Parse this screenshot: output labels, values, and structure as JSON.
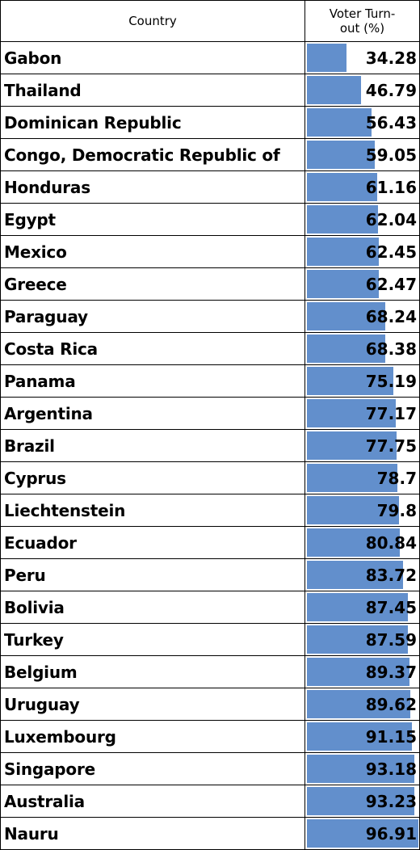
{
  "table": {
    "header": [
      "Country",
      "Voter Turn-out (%)"
    ],
    "rows": [
      [
        "Gabon",
        34.28
      ],
      [
        "Thailand",
        46.79
      ],
      [
        "Dominican Republic",
        56.43
      ],
      [
        "Congo, Democratic Republic of",
        59.05
      ],
      [
        "Honduras",
        61.16
      ],
      [
        "Egypt",
        62.04
      ],
      [
        "Mexico",
        62.45
      ],
      [
        "Greece",
        62.47
      ],
      [
        "Paraguay",
        68.24
      ],
      [
        "Costa Rica",
        68.38
      ],
      [
        "Panama",
        75.19
      ],
      [
        "Argentina",
        77.17
      ],
      [
        "Brazil",
        77.75
      ],
      [
        "Cyprus",
        78.7
      ],
      [
        "Liechtenstein",
        79.8
      ],
      [
        "Ecuador",
        80.84
      ],
      [
        "Peru",
        83.72
      ],
      [
        "Bolivia",
        87.45
      ],
      [
        "Turkey",
        87.59
      ],
      [
        "Belgium",
        89.37
      ],
      [
        "Uruguay",
        89.62
      ],
      [
        "Luxembourg",
        91.15
      ],
      [
        "Singapore",
        93.18
      ],
      [
        "Australia",
        93.23
      ],
      [
        "Nauru",
        96.91
      ]
    ]
  }
}
